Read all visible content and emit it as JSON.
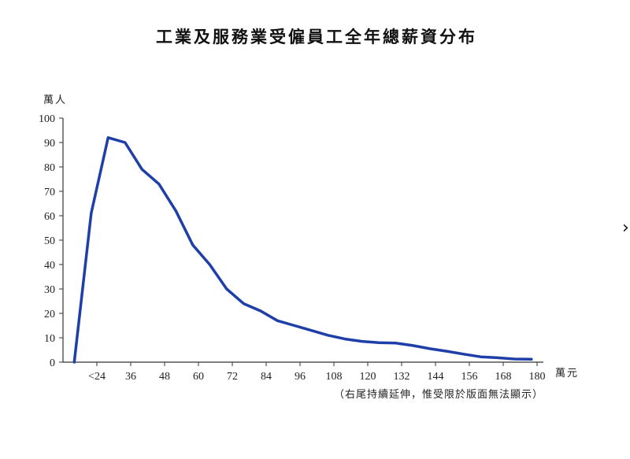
{
  "chart_data": {
    "type": "line",
    "title": "工業及服務業受僱員工全年總薪資分布",
    "ylabel": "萬人",
    "xlabel": "萬元",
    "note": "（右尾持續延伸，惟受限於版面無法顯示）",
    "ylim": [
      0,
      100
    ],
    "yticks": [
      0,
      10,
      20,
      30,
      40,
      50,
      60,
      70,
      80,
      90,
      100
    ],
    "xlim": [
      12,
      180
    ],
    "xticks": [
      {
        "label": "<24",
        "value": 24
      },
      {
        "label": "36",
        "value": 36
      },
      {
        "label": "48",
        "value": 48
      },
      {
        "label": "60",
        "value": 60
      },
      {
        "label": "72",
        "value": 72
      },
      {
        "label": "84",
        "value": 84
      },
      {
        "label": "96",
        "value": 96
      },
      {
        "label": "108",
        "value": 108
      },
      {
        "label": "120",
        "value": 120
      },
      {
        "label": "132",
        "value": 132
      },
      {
        "label": "144",
        "value": 144
      },
      {
        "label": "156",
        "value": 156
      },
      {
        "label": "168",
        "value": 168
      },
      {
        "label": "180",
        "value": 180
      }
    ],
    "series": [
      {
        "color": "#1f3fa8",
        "points": [
          [
            16,
            0
          ],
          [
            22,
            61
          ],
          [
            28,
            92
          ],
          [
            34,
            90
          ],
          [
            40,
            79
          ],
          [
            46,
            73
          ],
          [
            52,
            62
          ],
          [
            58,
            48
          ],
          [
            64,
            40
          ],
          [
            70,
            30
          ],
          [
            76,
            24
          ],
          [
            82,
            21
          ],
          [
            88,
            17
          ],
          [
            94,
            15
          ],
          [
            100,
            13
          ],
          [
            106,
            11
          ],
          [
            112,
            9.5
          ],
          [
            118,
            8.5
          ],
          [
            124,
            8
          ],
          [
            130,
            7.8
          ],
          [
            136,
            6.8
          ],
          [
            142,
            5.5
          ],
          [
            148,
            4.5
          ],
          [
            154,
            3.3
          ],
          [
            160,
            2.2
          ],
          [
            166,
            1.8
          ],
          [
            172,
            1.3
          ],
          [
            178,
            1.2
          ]
        ]
      }
    ],
    "grid": false,
    "legend": "none"
  },
  "edge_glyph": "›"
}
